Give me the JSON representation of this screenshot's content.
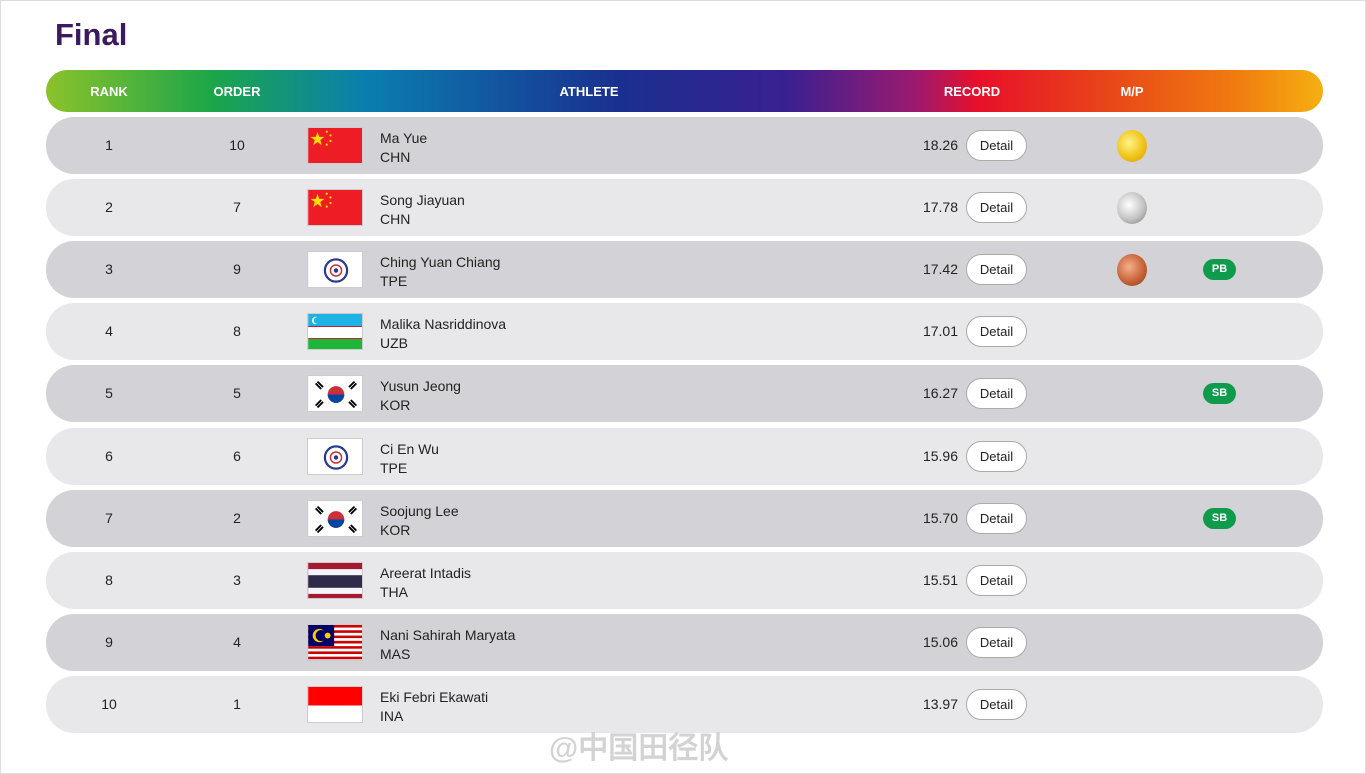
{
  "title": "Final",
  "columns": {
    "rank": "RANK",
    "order": "ORDER",
    "athlete": "ATHLETE",
    "record": "RECORD",
    "mp": "M/P"
  },
  "detail_label": "Detail",
  "rows": [
    {
      "rank": "1",
      "order": "10",
      "name": "Ma Yue",
      "country": "CHN",
      "record": "18.26",
      "medal": "gold",
      "badge": ""
    },
    {
      "rank": "2",
      "order": "7",
      "name": "Song Jiayuan",
      "country": "CHN",
      "record": "17.78",
      "medal": "silver",
      "badge": ""
    },
    {
      "rank": "3",
      "order": "9",
      "name": "Ching Yuan Chiang",
      "country": "TPE",
      "record": "17.42",
      "medal": "bronze",
      "badge": "PB"
    },
    {
      "rank": "4",
      "order": "8",
      "name": "Malika Nasriddinova",
      "country": "UZB",
      "record": "17.01",
      "medal": "",
      "badge": ""
    },
    {
      "rank": "5",
      "order": "5",
      "name": "Yusun Jeong",
      "country": "KOR",
      "record": "16.27",
      "medal": "",
      "badge": "SB"
    },
    {
      "rank": "6",
      "order": "6",
      "name": "Ci En Wu",
      "country": "TPE",
      "record": "15.96",
      "medal": "",
      "badge": ""
    },
    {
      "rank": "7",
      "order": "2",
      "name": "Soojung Lee",
      "country": "KOR",
      "record": "15.70",
      "medal": "",
      "badge": "SB"
    },
    {
      "rank": "8",
      "order": "3",
      "name": "Areerat Intadis",
      "country": "THA",
      "record": "15.51",
      "medal": "",
      "badge": ""
    },
    {
      "rank": "9",
      "order": "4",
      "name": "Nani Sahirah Maryata",
      "country": "MAS",
      "record": "15.06",
      "medal": "",
      "badge": ""
    },
    {
      "rank": "10",
      "order": "1",
      "name": "Eki Febri Ekawati",
      "country": "INA",
      "record": "13.97",
      "medal": "",
      "badge": ""
    }
  ],
  "watermark": "@中国田径队",
  "colors": {
    "title": "#3b1a5e",
    "badge": "#0e9c4c",
    "gold": "#f0c419",
    "silver": "#b8b8b8",
    "bronze": "#c8643a"
  }
}
